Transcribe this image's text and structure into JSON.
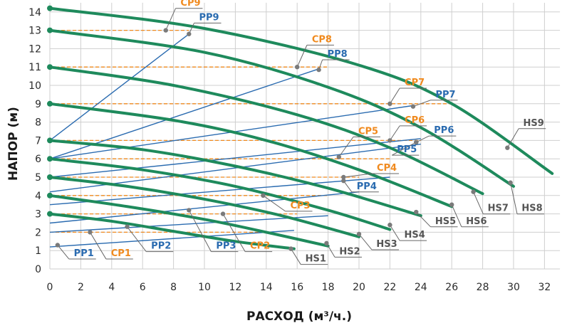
{
  "chart_data": {
    "type": "line",
    "xlabel": "РАСХОД (м³/ч.)",
    "ylabel": "НАПОР (м)",
    "xlim": [
      0,
      33
    ],
    "ylim": [
      0,
      14.5
    ],
    "x_ticks": [
      "0",
      "2",
      "4",
      "6",
      "8",
      "10",
      "12",
      "14",
      "16",
      "18",
      "20",
      "22",
      "24",
      "26",
      "28",
      "30",
      "32"
    ],
    "y_ticks": [
      "0",
      "1",
      "2",
      "3",
      "4",
      "5",
      "6",
      "7",
      "8",
      "9",
      "10",
      "11",
      "12",
      "13",
      "14"
    ],
    "grid": true,
    "colors": {
      "HS": "#1e8a5c",
      "PP": "#2a6bb0",
      "CP": "#f08a1e",
      "HS_label": "#555555",
      "grid": "#cfcfcf"
    },
    "hs_curves": [
      {
        "name": "HS1",
        "points": [
          [
            0,
            3
          ],
          [
            4,
            2.6
          ],
          [
            8,
            2.05
          ],
          [
            12,
            1.5
          ],
          [
            15.8,
            1.1
          ]
        ],
        "label_point": [
          15.6,
          1.1
        ]
      },
      {
        "name": "HS2",
        "points": [
          [
            0,
            4
          ],
          [
            5,
            3.4
          ],
          [
            10,
            2.7
          ],
          [
            14,
            2.0
          ],
          [
            18,
            1.25
          ]
        ],
        "label_point": [
          17.9,
          1.4
        ]
      },
      {
        "name": "HS3",
        "points": [
          [
            0,
            5
          ],
          [
            5,
            4.5
          ],
          [
            10,
            3.8
          ],
          [
            15,
            2.9
          ],
          [
            20,
            1.75
          ]
        ],
        "label_point": [
          20,
          1.9
        ]
      },
      {
        "name": "HS4",
        "points": [
          [
            0,
            6
          ],
          [
            6,
            5.4
          ],
          [
            12,
            4.5
          ],
          [
            18,
            3.2
          ],
          [
            22,
            2.15
          ]
        ],
        "label_point": [
          22,
          2.4
        ]
      },
      {
        "name": "HS5",
        "points": [
          [
            0,
            7
          ],
          [
            6,
            6.5
          ],
          [
            12,
            5.6
          ],
          [
            18,
            4.4
          ],
          [
            24,
            2.9
          ]
        ],
        "label_point": [
          23.7,
          3.1
        ]
      },
      {
        "name": "HS6",
        "points": [
          [
            0,
            9
          ],
          [
            8,
            8.1
          ],
          [
            14,
            7.0
          ],
          [
            20,
            5.4
          ],
          [
            26,
            3.4
          ]
        ],
        "label_point": [
          26,
          3.5
        ]
      },
      {
        "name": "HS7",
        "points": [
          [
            0,
            11
          ],
          [
            8,
            10.0
          ],
          [
            16,
            8.4
          ],
          [
            22,
            6.6
          ],
          [
            28,
            4.1
          ]
        ],
        "label_point": [
          27.4,
          4.2
        ]
      },
      {
        "name": "HS8",
        "points": [
          [
            0,
            13
          ],
          [
            10,
            11.8
          ],
          [
            18,
            9.9
          ],
          [
            24,
            7.7
          ],
          [
            30,
            4.5
          ]
        ],
        "label_point": [
          29.8,
          4.7
        ]
      },
      {
        "name": "HS9",
        "points": [
          [
            0,
            14.2
          ],
          [
            10,
            13.1
          ],
          [
            20,
            11.1
          ],
          [
            26,
            9.0
          ],
          [
            32.5,
            5.2
          ]
        ],
        "label_point": [
          29.6,
          6.6
        ]
      }
    ],
    "pp_lines": [
      {
        "name": "PP1",
        "x1": 0,
        "y1": 1.2,
        "x2": 15.8,
        "y2": 2.1,
        "label_point": [
          0.5,
          1.3
        ]
      },
      {
        "name": "PP2",
        "x1": 0,
        "y1": 2.0,
        "x2": 18,
        "y2": 2.9,
        "label_point": [
          5,
          2.3
        ]
      },
      {
        "name": "PP3",
        "x1": 0,
        "y1": 2.5,
        "x2": 20,
        "y2": 4.2,
        "label_point": [
          9,
          3.2
        ]
      },
      {
        "name": "PP4",
        "x1": 0,
        "y1": 3.5,
        "x2": 22,
        "y2": 5.0,
        "label_point": [
          19,
          4.8
        ]
      },
      {
        "name": "PP5",
        "x1": 0,
        "y1": 4.2,
        "x2": 24,
        "y2": 6.8,
        "label_point": [
          23.7,
          6.9
        ]
      },
      {
        "name": "PP6",
        "x1": 0,
        "y1": 5.0,
        "x2": 24,
        "y2": 7.1,
        "label_point": [
          23.7,
          6.9
        ]
      },
      {
        "name": "PP7",
        "x1": 0,
        "y1": 6.0,
        "x2": 23.5,
        "y2": 8.9,
        "label_point": [
          23.5,
          8.85
        ]
      },
      {
        "name": "PP8",
        "x1": 0,
        "y1": 6.0,
        "x2": 17.4,
        "y2": 10.9,
        "label_point": [
          17.4,
          10.85
        ]
      },
      {
        "name": "PP9",
        "x1": 0,
        "y1": 7.0,
        "x2": 9,
        "y2": 12.8,
        "label_point": [
          9,
          12.8
        ]
      }
    ],
    "cp_lines": [
      {
        "name": "CP1",
        "y": 2,
        "x_end": 14,
        "label_point": [
          2.6,
          2
        ]
      },
      {
        "name": "CP2",
        "y": 3,
        "x_end": 16,
        "label_point": [
          11.2,
          3
        ]
      },
      {
        "name": "CP3",
        "y": 4,
        "x_end": 18,
        "label_point": [
          13.8,
          4
        ]
      },
      {
        "name": "CP4",
        "y": 5,
        "x_end": 20,
        "label_point": [
          19,
          5
        ]
      },
      {
        "name": "CP5",
        "y": 6,
        "x_end": 22,
        "label_point": [
          18.7,
          6.1
        ]
      },
      {
        "name": "CP6",
        "y": 7,
        "x_end": 24,
        "label_point": [
          22,
          7
        ]
      },
      {
        "name": "CP7",
        "y": 9,
        "x_end": 26,
        "label_point": [
          22,
          9
        ]
      },
      {
        "name": "CP8",
        "y": 11,
        "x_end": 18,
        "label_point": [
          16,
          11
        ]
      },
      {
        "name": "CP9",
        "y": 13,
        "x_end": 9,
        "label_point": [
          7.5,
          13
        ]
      }
    ],
    "labels": [
      {
        "text": "PP1",
        "color": "PP",
        "anchor": [
          0.5,
          1.3
        ],
        "pos": [
          2.2,
          0.7
        ]
      },
      {
        "text": "CP1",
        "color": "CP",
        "anchor": [
          2.6,
          2
        ],
        "pos": [
          4.6,
          0.7
        ]
      },
      {
        "text": "PP2",
        "color": "PP",
        "anchor": [
          5,
          2.3
        ],
        "pos": [
          7.2,
          1.1
        ]
      },
      {
        "text": "PP3",
        "color": "PP",
        "anchor": [
          9,
          3.2
        ],
        "pos": [
          11.4,
          1.1
        ]
      },
      {
        "text": "CP2",
        "color": "CP",
        "anchor": [
          11.2,
          3
        ],
        "pos": [
          13.6,
          1.1
        ]
      },
      {
        "text": "HS1",
        "color": "HS_label",
        "anchor": [
          15.6,
          1.1
        ],
        "pos": [
          17.2,
          0.4
        ]
      },
      {
        "text": "HS2",
        "color": "HS_label",
        "anchor": [
          17.9,
          1.4
        ],
        "pos": [
          19.4,
          0.8
        ]
      },
      {
        "text": "CP3",
        "color": "CP",
        "anchor": [
          13.8,
          4
        ],
        "pos": [
          16.2,
          3.3
        ]
      },
      {
        "text": "HS3",
        "color": "HS_label",
        "anchor": [
          20,
          1.9
        ],
        "pos": [
          21.8,
          1.2
        ]
      },
      {
        "text": "HS4",
        "color": "HS_label",
        "anchor": [
          22,
          2.4
        ],
        "pos": [
          23.6,
          1.7
        ]
      },
      {
        "text": "PP4",
        "color": "PP",
        "anchor": [
          19,
          4.8
        ],
        "pos": [
          20.5,
          4.35
        ]
      },
      {
        "text": "CP4",
        "color": "CP",
        "anchor": [
          19,
          5
        ],
        "pos": [
          21.8,
          5.35
        ]
      },
      {
        "text": "HS5",
        "color": "HS_label",
        "anchor": [
          23.7,
          3.1
        ],
        "pos": [
          25.6,
          2.45
        ]
      },
      {
        "text": "HS6",
        "color": "HS_label",
        "anchor": [
          26,
          3.5
        ],
        "pos": [
          27.6,
          2.45
        ]
      },
      {
        "text": "CP5",
        "color": "CP",
        "anchor": [
          18.7,
          6.1
        ],
        "pos": [
          20.6,
          7.35
        ]
      },
      {
        "text": "PP5",
        "color": "PP",
        "anchor": [
          23.7,
          6.9
        ],
        "pos": [
          23.1,
          6.35
        ]
      },
      {
        "text": "CP6",
        "color": "CP",
        "anchor": [
          22,
          7
        ],
        "pos": [
          23.6,
          7.95
        ]
      },
      {
        "text": "PP6",
        "color": "PP",
        "anchor": [
          23.7,
          6.9
        ],
        "pos": [
          25.5,
          7.4
        ]
      },
      {
        "text": "HS7",
        "color": "HS_label",
        "anchor": [
          27.4,
          4.2
        ],
        "pos": [
          29,
          3.15
        ]
      },
      {
        "text": "HS8",
        "color": "HS_label",
        "anchor": [
          29.8,
          4.7
        ],
        "pos": [
          31.2,
          3.15
        ]
      },
      {
        "text": "CP7",
        "color": "CP",
        "anchor": [
          22,
          9
        ],
        "pos": [
          23.6,
          10.0
        ]
      },
      {
        "text": "PP7",
        "color": "PP",
        "anchor": [
          23.5,
          8.85
        ],
        "pos": [
          25.6,
          9.35
        ]
      },
      {
        "text": "HS9",
        "color": "HS_label",
        "anchor": [
          29.6,
          6.6
        ],
        "pos": [
          31.3,
          7.8
        ]
      },
      {
        "text": "CP8",
        "color": "CP",
        "anchor": [
          16,
          11
        ],
        "pos": [
          17.6,
          12.35
        ]
      },
      {
        "text": "PP8",
        "color": "PP",
        "anchor": [
          17.4,
          10.85
        ],
        "pos": [
          18.6,
          11.55
        ]
      },
      {
        "text": "CP9",
        "color": "CP",
        "anchor": [
          7.5,
          13
        ],
        "pos": [
          9.1,
          14.35
        ]
      },
      {
        "text": "PP9",
        "color": "PP",
        "anchor": [
          9,
          12.8
        ],
        "pos": [
          10.3,
          13.55
        ]
      }
    ]
  }
}
